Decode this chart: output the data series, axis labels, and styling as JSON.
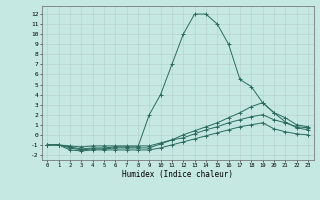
{
  "xlabel": "Humidex (Indice chaleur)",
  "bg_color": "#c5e8e3",
  "grid_color": "#b8d8d4",
  "line_color": "#2a6b5e",
  "xlim": [
    -0.5,
    23.5
  ],
  "ylim": [
    -2.5,
    12.8
  ],
  "xticks": [
    0,
    1,
    2,
    3,
    4,
    5,
    6,
    7,
    8,
    9,
    10,
    11,
    12,
    13,
    14,
    15,
    16,
    17,
    18,
    19,
    20,
    21,
    22,
    23
  ],
  "yticks": [
    -2,
    -1,
    0,
    1,
    2,
    3,
    4,
    5,
    6,
    7,
    8,
    9,
    10,
    11,
    12
  ],
  "line1_x": [
    0,
    1,
    2,
    3,
    4,
    5,
    6,
    7,
    8,
    9,
    10,
    11,
    12,
    13,
    14,
    15,
    16,
    17,
    18,
    19,
    20,
    21,
    22,
    23
  ],
  "line1_y": [
    -1.0,
    -1.0,
    -1.5,
    -1.6,
    -1.5,
    -1.5,
    -1.5,
    -1.5,
    -1.5,
    -1.5,
    -1.3,
    -1.0,
    -0.7,
    -0.4,
    -0.1,
    0.2,
    0.5,
    0.8,
    1.0,
    1.2,
    0.6,
    0.3,
    0.1,
    0.0
  ],
  "line2_x": [
    0,
    1,
    2,
    3,
    4,
    5,
    6,
    7,
    8,
    9,
    10,
    11,
    12,
    13,
    14,
    15,
    16,
    17,
    18,
    19,
    20,
    21,
    22,
    23
  ],
  "line2_y": [
    -1.0,
    -1.0,
    -1.2,
    -1.4,
    -1.3,
    -1.3,
    -1.2,
    -1.2,
    -1.2,
    2.0,
    4.0,
    7.0,
    10.0,
    12.0,
    12.0,
    11.0,
    9.0,
    5.5,
    4.8,
    3.2,
    2.2,
    1.3,
    0.7,
    0.5
  ],
  "line3_x": [
    0,
    1,
    2,
    3,
    4,
    5,
    6,
    7,
    8,
    9,
    10,
    11,
    12,
    13,
    14,
    15,
    16,
    17,
    18,
    19,
    20,
    21,
    22,
    23
  ],
  "line3_y": [
    -1.0,
    -1.0,
    -1.3,
    -1.5,
    -1.4,
    -1.4,
    -1.3,
    -1.3,
    -1.3,
    -1.3,
    -0.9,
    -0.5,
    0.0,
    0.4,
    0.8,
    1.2,
    1.7,
    2.2,
    2.8,
    3.2,
    2.2,
    1.7,
    1.0,
    0.8
  ],
  "line4_x": [
    0,
    1,
    2,
    3,
    4,
    5,
    6,
    7,
    8,
    9,
    10,
    11,
    12,
    13,
    14,
    15,
    16,
    17,
    18,
    19,
    20,
    21,
    22,
    23
  ],
  "line4_y": [
    -1.0,
    -1.0,
    -1.1,
    -1.2,
    -1.1,
    -1.1,
    -1.1,
    -1.1,
    -1.1,
    -1.1,
    -0.8,
    -0.5,
    -0.3,
    0.1,
    0.5,
    0.8,
    1.2,
    1.5,
    1.8,
    2.0,
    1.5,
    1.2,
    0.8,
    0.7
  ]
}
